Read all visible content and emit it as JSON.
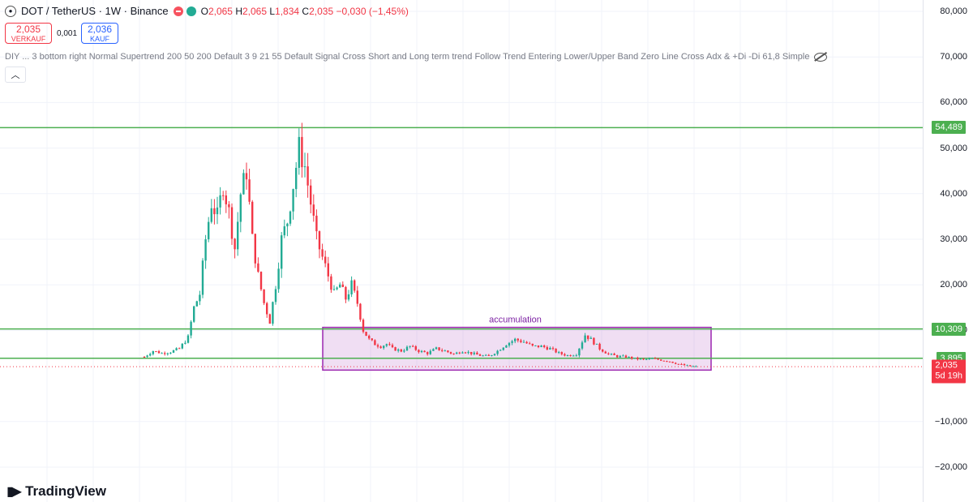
{
  "header": {
    "symbol_title": "DOT / TetherUS · 1W · Binance",
    "ohlc": {
      "open_label": "O",
      "open": "2,065",
      "high_label": "H",
      "high": "2,065",
      "low_label": "L",
      "low": "1,834",
      "close_label": "C",
      "close": "2,035",
      "change": "−0,030 (−1,45%)"
    }
  },
  "trade": {
    "sell_price": "2,035",
    "sell_label": "VERKAUF",
    "spread": "0,001",
    "buy_price": "2,036",
    "buy_label": "KAUF"
  },
  "indicator_line": "DIY ... 3 bottom right Normal Supertrend 200 50 200 Default 3 9 21 55 Default Signal Cross Short and Long term trend Follow Trend Entering Lower/Upper Band Zero Line Cross Adx & +Di -Di 61,8 Simple",
  "collapse_icon": "chevron-up-icon",
  "price_axis": {
    "ticks": [
      "80,000",
      "70,000",
      "60,000",
      "50,000",
      "40,000",
      "30,000",
      "20,000",
      "10,000",
      "−10,000",
      "−20,000"
    ],
    "levels": [
      {
        "label": "54,489",
        "color": "#4caf50"
      },
      {
        "label": "10,309",
        "color": "#4caf50"
      },
      {
        "label": "3,895",
        "color": "#4caf50"
      }
    ],
    "current_price": "2,035",
    "countdown": "5d 19h",
    "current_color": "#f23645"
  },
  "annotation": {
    "accumulation_label": "accumulation",
    "box_color": "#9c27b0"
  },
  "colors": {
    "up": "#22ab94",
    "down": "#f23645",
    "level_line": "#4caf50"
  },
  "branding": {
    "logo_text": "TradingView"
  },
  "chart_data": {
    "type": "candlestick",
    "series_summary": "DOT/USDT weekly, highs ~54.5 in late 2021, accumulation range ~2–10.3 afterwards",
    "horizontal_levels": [
      54.489,
      10.309,
      3.895
    ],
    "accumulation_range": [
      2.0,
      10.309
    ],
    "close_path": [
      [
        0,
        4.2
      ],
      [
        3,
        5.5
      ],
      [
        6,
        5.0
      ],
      [
        9,
        5.3
      ],
      [
        12,
        6.0
      ],
      [
        15,
        8.5
      ],
      [
        17,
        15.0
      ],
      [
        19,
        18.0
      ],
      [
        21,
        30.0
      ],
      [
        23,
        38.0
      ],
      [
        25,
        35.0
      ],
      [
        27,
        42.0
      ],
      [
        29,
        36.0
      ],
      [
        31,
        28.0
      ],
      [
        33,
        40.0
      ],
      [
        35,
        45.0
      ],
      [
        37,
        30.0
      ],
      [
        39,
        22.0
      ],
      [
        41,
        16.0
      ],
      [
        43,
        12.0
      ],
      [
        45,
        20.0
      ],
      [
        47,
        30.0
      ],
      [
        49,
        34.0
      ],
      [
        51,
        42.0
      ],
      [
        53,
        50.0
      ],
      [
        55,
        46.0
      ],
      [
        57,
        38.0
      ],
      [
        59,
        30.0
      ],
      [
        61,
        26.0
      ],
      [
        63,
        22.0
      ],
      [
        65,
        18.0
      ],
      [
        67,
        20.0
      ],
      [
        69,
        17.0
      ],
      [
        71,
        20.0
      ],
      [
        73,
        16.0
      ],
      [
        75,
        10.0
      ],
      [
        77,
        8.0
      ],
      [
        79,
        7.0
      ],
      [
        81,
        6.5
      ],
      [
        83,
        7.0
      ],
      [
        85,
        6.0
      ],
      [
        88,
        5.5
      ],
      [
        91,
        6.5
      ],
      [
        94,
        5.5
      ],
      [
        97,
        5.0
      ],
      [
        100,
        6.0
      ],
      [
        103,
        5.5
      ],
      [
        106,
        4.8
      ],
      [
        109,
        5.5
      ],
      [
        112,
        5.0
      ],
      [
        115,
        4.5
      ],
      [
        118,
        4.3
      ],
      [
        121,
        5.5
      ],
      [
        124,
        7.0
      ],
      [
        127,
        8.0
      ],
      [
        130,
        7.5
      ],
      [
        133,
        6.5
      ],
      [
        136,
        6.5
      ],
      [
        139,
        6.0
      ],
      [
        142,
        5.0
      ],
      [
        145,
        4.5
      ],
      [
        148,
        4.8
      ],
      [
        151,
        9.0
      ],
      [
        153,
        8.0
      ],
      [
        156,
        6.0
      ],
      [
        159,
        4.8
      ],
      [
        162,
        4.3
      ],
      [
        165,
        4.2
      ],
      [
        168,
        3.8
      ],
      [
        171,
        3.6
      ],
      [
        174,
        3.8
      ],
      [
        177,
        3.5
      ],
      [
        180,
        3.2
      ],
      [
        183,
        2.6
      ],
      [
        186,
        2.2
      ],
      [
        189,
        2.035
      ]
    ]
  }
}
